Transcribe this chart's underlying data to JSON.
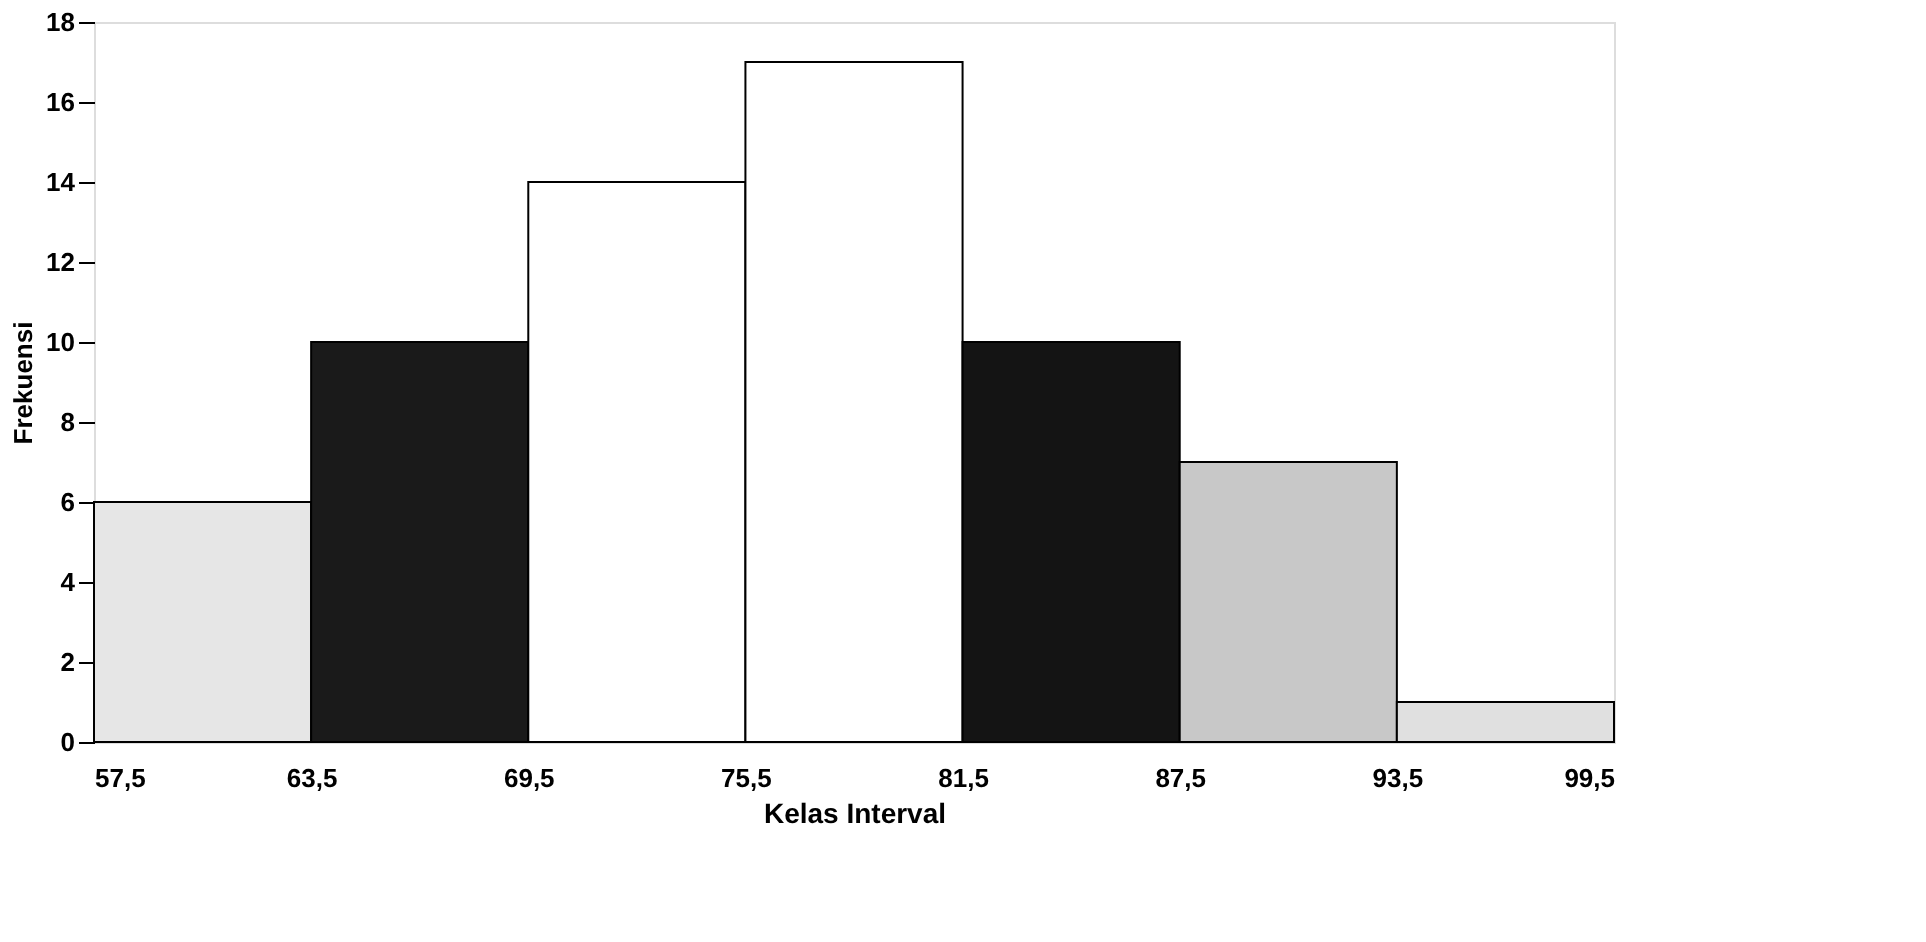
{
  "chart_data": {
    "type": "histogram",
    "bins": [
      57.5,
      63.5,
      69.5,
      75.5,
      81.5,
      87.5,
      93.5,
      99.5
    ],
    "values": [
      6,
      10,
      14,
      17,
      10,
      7,
      1
    ],
    "colors": [
      "#e6e6e6",
      "#1a1a1a",
      "#ffffff",
      "#ffffff",
      "#141414",
      "#c8c8c8",
      "#e0e0e0"
    ],
    "xlabel": "Kelas Interval",
    "ylabel": "Frekuensi",
    "xlim": [
      57.5,
      99.5
    ],
    "xticks": [
      {
        "value": 57.5,
        "label": "57,5"
      },
      {
        "value": 63.5,
        "label": "63,5"
      },
      {
        "value": 69.5,
        "label": "69,5"
      },
      {
        "value": 75.5,
        "label": "75,5"
      },
      {
        "value": 81.5,
        "label": "81,5"
      },
      {
        "value": 87.5,
        "label": "87,5"
      },
      {
        "value": 93.5,
        "label": "93,5"
      },
      {
        "value": 99.5,
        "label": "99,5"
      }
    ],
    "ylim": [
      0,
      18
    ],
    "yticks": [
      0,
      2,
      4,
      6,
      8,
      10,
      12,
      14,
      16,
      18
    ],
    "grid": false
  }
}
